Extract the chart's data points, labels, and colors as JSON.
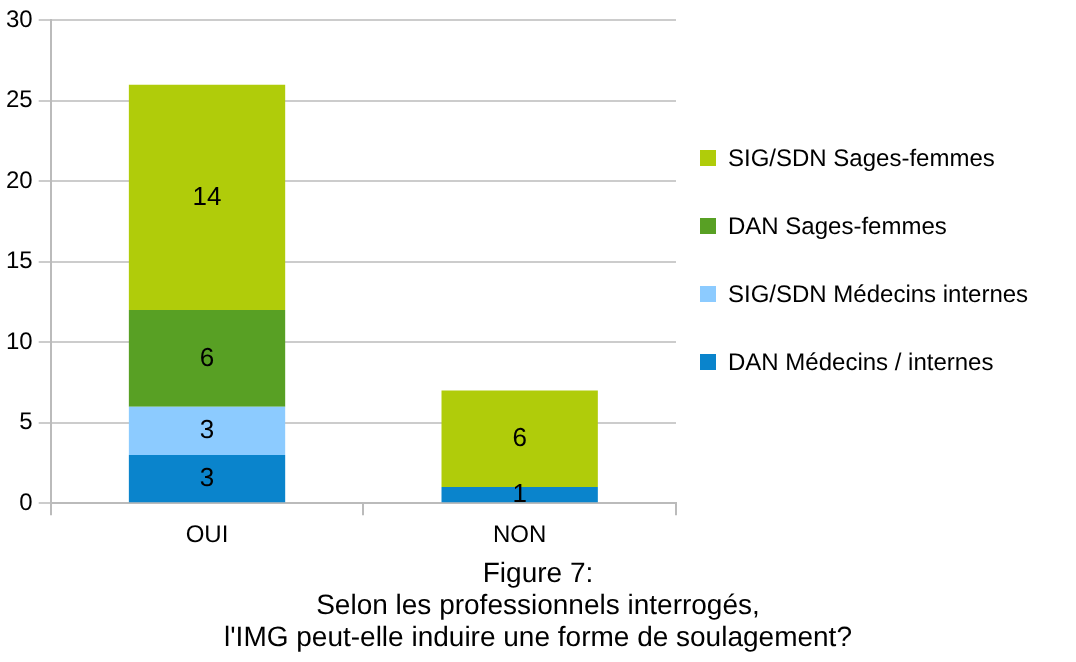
{
  "chart_data": {
    "type": "bar",
    "stacked": true,
    "categories": [
      "OUI",
      "NON"
    ],
    "series": [
      {
        "name": "DAN Médecins / internes",
        "color": "#0a84cc",
        "values": [
          3,
          1
        ],
        "value_labels": [
          "3",
          "1"
        ]
      },
      {
        "name": "SIG/SDN Médecins internes",
        "color": "#8ccbff",
        "values": [
          3,
          0
        ],
        "value_labels": [
          "3",
          null
        ]
      },
      {
        "name": "DAN Sages-femmes",
        "color": "#58a024",
        "values": [
          6,
          0
        ],
        "value_labels": [
          "6",
          null
        ]
      },
      {
        "name": "SIG/SDN Sages-femmes",
        "color": "#b0cc0a",
        "values": [
          14,
          6
        ],
        "value_labels": [
          "14",
          "6"
        ]
      }
    ],
    "ylim": [
      0,
      30
    ],
    "yticks": [
      0,
      5,
      10,
      15,
      20,
      25,
      30
    ],
    "grid": "y",
    "legend": "right",
    "annotations": [
      "Figure 7:",
      "Selon les professionnels interrogés,",
      "l'IMG peut-elle induire une forme de soulagement?"
    ]
  }
}
